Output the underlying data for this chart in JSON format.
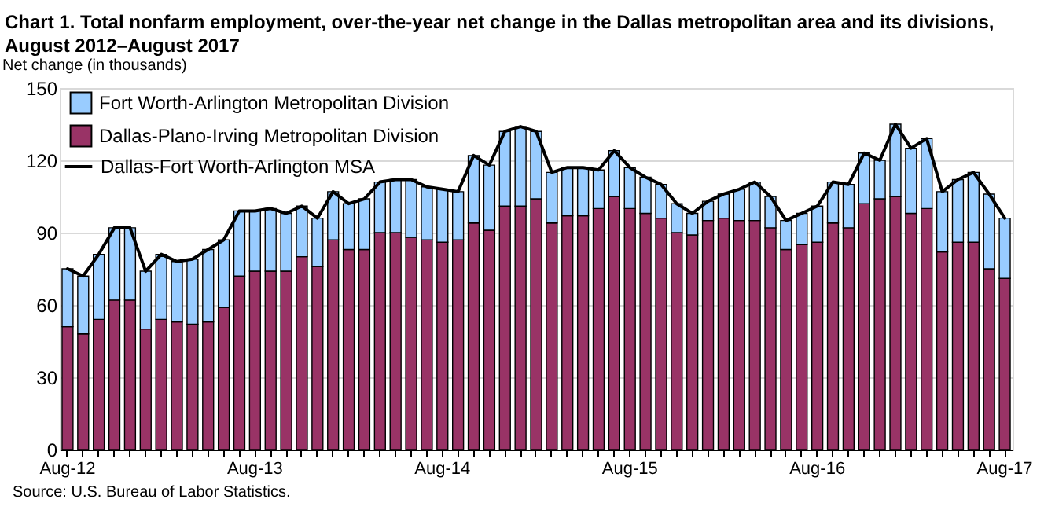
{
  "chart_data": {
    "type": "bar",
    "title": "Chart 1. Total nonfarm employment, over-the-year net change in the Dallas metropolitan area and its divisions, August 2012–August 2017",
    "ylabel": "Net change (in thousands)",
    "categories": [
      "Aug-12",
      null,
      null,
      null,
      null,
      null,
      null,
      null,
      null,
      null,
      null,
      null,
      "Aug-13",
      null,
      null,
      null,
      null,
      null,
      null,
      null,
      null,
      null,
      null,
      null,
      "Aug-14",
      null,
      null,
      null,
      null,
      null,
      null,
      null,
      null,
      null,
      null,
      null,
      "Aug-15",
      null,
      null,
      null,
      null,
      null,
      null,
      null,
      null,
      null,
      null,
      null,
      "Aug-16",
      null,
      null,
      null,
      null,
      null,
      null,
      null,
      null,
      null,
      null,
      null,
      "Aug-17"
    ],
    "stacked": true,
    "series": [
      {
        "name": "Dallas-Plano-Irving Metropolitan Division",
        "color": "#993366",
        "values": [
          51,
          48,
          54,
          62,
          62,
          50,
          54,
          53,
          52,
          53,
          59,
          72,
          74,
          74,
          74,
          80,
          76,
          87,
          83,
          83,
          90,
          90,
          88,
          87,
          86,
          87,
          94,
          91,
          101,
          101,
          104,
          94,
          97,
          97,
          100,
          105,
          100,
          98,
          96,
          90,
          89,
          95,
          96,
          95,
          95,
          92,
          83,
          85,
          86,
          94,
          92,
          102,
          104,
          105,
          98,
          100,
          82,
          86,
          86,
          75,
          71
        ]
      },
      {
        "name": "Fort Worth-Arlington Metropolitan Division",
        "color": "#99ccff",
        "values": [
          24,
          24,
          27,
          30,
          30,
          24,
          27,
          25,
          27,
          30,
          28,
          27,
          25,
          26,
          24,
          21,
          20,
          20,
          19,
          21,
          21,
          22,
          24,
          22,
          22,
          20,
          28,
          27,
          31,
          33,
          28,
          21,
          20,
          20,
          16,
          19,
          17,
          15,
          14,
          12,
          9,
          8,
          10,
          13,
          16,
          13,
          12,
          13,
          15,
          17,
          18,
          21,
          16,
          30,
          27,
          29,
          25,
          26,
          29,
          31,
          25
        ]
      },
      {
        "name": "Dallas-Fort Worth-Arlington MSA",
        "type": "line",
        "color": "#000000",
        "values": [
          75,
          72,
          81,
          92,
          92,
          74,
          81,
          78,
          79,
          83,
          87,
          99,
          99,
          100,
          98,
          101,
          96,
          107,
          102,
          104,
          111,
          112,
          112,
          109,
          108,
          107,
          122,
          118,
          132,
          134,
          132,
          115,
          117,
          117,
          116,
          124,
          117,
          113,
          110,
          102,
          98,
          103,
          106,
          108,
          111,
          105,
          95,
          98,
          101,
          111,
          110,
          123,
          120,
          135,
          125,
          129,
          107,
          112,
          115,
          106,
          96
        ]
      }
    ],
    "ylim": [
      0,
      150
    ],
    "yticks": [
      0,
      30,
      60,
      90,
      120,
      150
    ],
    "grid": "y",
    "legend": "top left",
    "marker": "none",
    "annotations": [
      "Source: U.S. Bureau of Labor Statistics."
    ]
  }
}
